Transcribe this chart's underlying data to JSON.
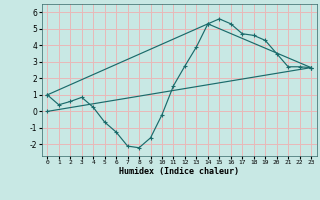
{
  "xlabel": "Humidex (Indice chaleur)",
  "bg_color": "#c8e8e4",
  "grid_color": "#e8b8b8",
  "line_color": "#1a6b6b",
  "xlim": [
    -0.5,
    23.5
  ],
  "ylim": [
    -2.7,
    6.5
  ],
  "xticks": [
    0,
    1,
    2,
    3,
    4,
    5,
    6,
    7,
    8,
    9,
    10,
    11,
    12,
    13,
    14,
    15,
    16,
    17,
    18,
    19,
    20,
    21,
    22,
    23
  ],
  "yticks": [
    -2,
    -1,
    0,
    1,
    2,
    3,
    4,
    5,
    6
  ],
  "line1_x": [
    0,
    1,
    2,
    3,
    4,
    5,
    6,
    7,
    8,
    9,
    10,
    11,
    12,
    13,
    14,
    15,
    16,
    17,
    18,
    19,
    20,
    21,
    22,
    23
  ],
  "line1_y": [
    1.0,
    0.4,
    0.6,
    0.85,
    0.25,
    -0.65,
    -1.25,
    -2.1,
    -2.2,
    -1.6,
    -0.2,
    1.55,
    2.75,
    3.9,
    5.3,
    5.6,
    5.3,
    4.7,
    4.6,
    4.3,
    3.5,
    2.7,
    2.7,
    2.65
  ],
  "line2_x": [
    0,
    14,
    23
  ],
  "line2_y": [
    1.0,
    5.3,
    2.65
  ],
  "line3_x": [
    0,
    23
  ],
  "line3_y": [
    0.0,
    2.65
  ]
}
